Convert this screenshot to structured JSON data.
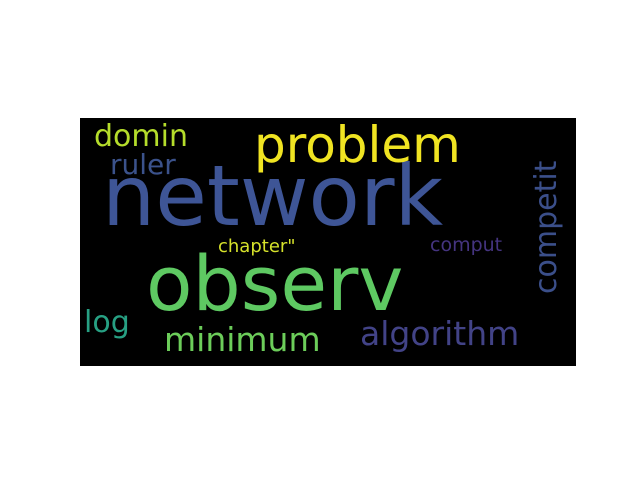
{
  "word_cloud": {
    "words": [
      {
        "key": "network",
        "text": "network",
        "color": "#3e5596"
      },
      {
        "key": "observ",
        "text": "observ",
        "color": "#5ec962"
      },
      {
        "key": "problem",
        "text": "problem",
        "color": "#f0e422"
      },
      {
        "key": "domin",
        "text": "domin",
        "color": "#b5dd2b"
      },
      {
        "key": "ruler",
        "text": "ruler",
        "color": "#3b528b"
      },
      {
        "key": "competit",
        "text": "competit",
        "color": "#3b4f8a"
      },
      {
        "key": "algorithm",
        "text": "algorithm",
        "color": "#424387"
      },
      {
        "key": "minimum",
        "text": "minimum",
        "color": "#6ccd5a"
      },
      {
        "key": "log",
        "text": "log",
        "color": "#27a083"
      },
      {
        "key": "chapter",
        "text": "chapter\"",
        "color": "#d6e22b"
      },
      {
        "key": "comput",
        "text": "comput",
        "color": "#453480"
      }
    ]
  }
}
